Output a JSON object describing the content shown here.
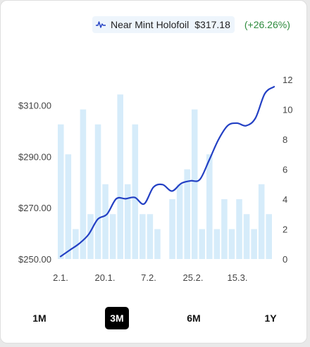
{
  "legend": {
    "icon": "line-chart-icon",
    "name": "Near Mint Holofoil",
    "price": "$317.18",
    "change": "(+26.26%)",
    "change_color": "#2e8b3d"
  },
  "ranges": [
    {
      "label": "1M",
      "active": false
    },
    {
      "label": "3M",
      "active": true
    },
    {
      "label": "6M",
      "active": false
    },
    {
      "label": "1Y",
      "active": false
    }
  ],
  "colors": {
    "line": "#2340c4",
    "bars": "#d6ecfa"
  },
  "chart_data": {
    "type": "bar+line",
    "x_ticks": [
      "2.1.",
      "20.1.",
      "7.2.",
      "25.2.",
      "15.3."
    ],
    "y_left": {
      "ticks": [
        "$250.00",
        "$270.00",
        "$290.00",
        "$310.00"
      ],
      "range": [
        250,
        320
      ]
    },
    "y_right": {
      "ticks": [
        "0",
        "2",
        "4",
        "6",
        "8",
        "10",
        "12"
      ],
      "range": [
        0,
        12
      ]
    },
    "series": [
      {
        "kind": "bar",
        "axis": "right",
        "values": [
          9,
          7,
          2,
          10,
          3,
          9,
          5,
          3,
          11,
          5,
          9,
          3,
          3,
          2,
          0,
          4,
          5,
          6,
          10,
          2,
          7,
          2,
          4,
          2,
          4,
          3,
          2,
          5,
          3
        ]
      },
      {
        "kind": "line",
        "axis": "left",
        "values": [
          251,
          253.5,
          256,
          259.5,
          265.5,
          267.5,
          273.5,
          273.5,
          274,
          271.5,
          278,
          279,
          276.5,
          279.5,
          280.5,
          281,
          288.5,
          296.5,
          302,
          303,
          302,
          305,
          314.5,
          317.2
        ]
      }
    ]
  }
}
